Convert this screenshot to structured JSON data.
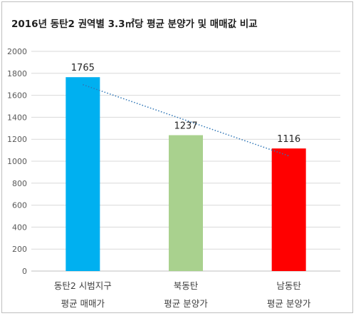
{
  "chart_data": {
    "type": "bar",
    "title": "2016년 동탄2 권역별 3.3㎡당 평균 분양가 및 매매값 비교",
    "categories": [
      [
        "동탄2 시범지구",
        "평균 매매가"
      ],
      [
        "북동탄",
        "평균 분양가"
      ],
      [
        "남동탄",
        "평균 분양가"
      ]
    ],
    "values": [
      1765,
      1237,
      1116
    ],
    "data_labels": [
      "1765",
      "1237",
      "1116"
    ],
    "colors": [
      "#00b0f0",
      "#a9d18e",
      "#ff0000"
    ],
    "ylim": [
      0,
      2000
    ],
    "yticks": [
      0,
      200,
      400,
      600,
      800,
      1000,
      1200,
      1400,
      1600,
      1800,
      2000
    ],
    "grid": true,
    "trendline": {
      "type": "linear",
      "color": "#2e75b6",
      "style": "dotted"
    },
    "xlabel": "",
    "ylabel": ""
  }
}
